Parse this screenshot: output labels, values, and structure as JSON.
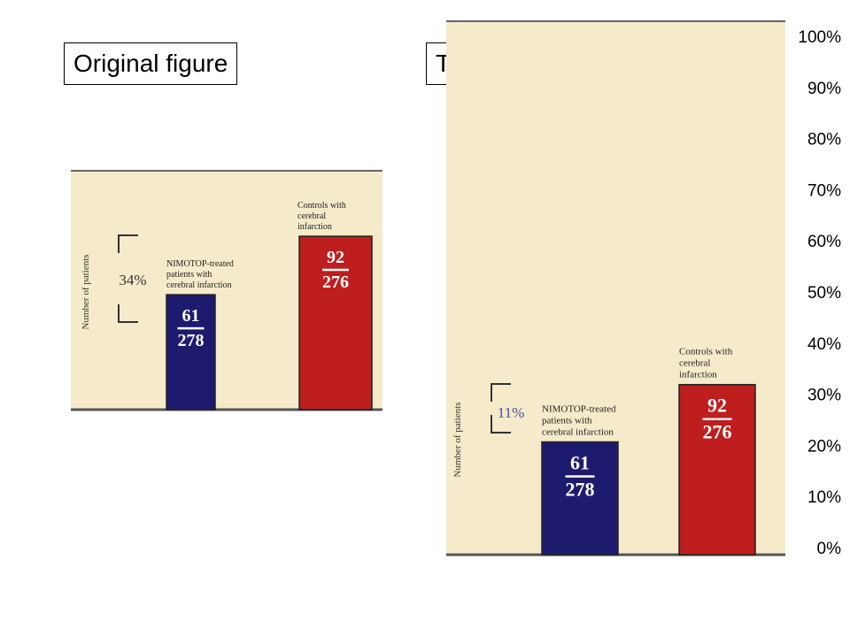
{
  "labels": {
    "original": "Original figure",
    "scaled": "To scale"
  },
  "colors": {
    "panel_bg": "#f5ebca",
    "bar_treated": "#1e1b6e",
    "bar_control": "#be1e1e",
    "axis": "#555555",
    "pct_text_original": "#333333",
    "pct_text_scaled": "#4a4ea0"
  },
  "chart_data": [
    {
      "panel": "original",
      "type": "bar",
      "ylabel": "Number of patients",
      "bracket_label": "34%",
      "categories": [
        "NIMOTOP-treated patients with cerebral infarction",
        "Controls with cerebral infarction"
      ],
      "category_lines": [
        [
          "NIMOTOP-treated",
          "patients with",
          "cerebral infarction"
        ],
        [
          "Controls with",
          "cerebral",
          "infarction"
        ]
      ],
      "values": [
        61,
        92
      ],
      "denominators": [
        278,
        276
      ]
    },
    {
      "panel": "to-scale",
      "type": "bar",
      "ylabel": "Number of patients",
      "bracket_label": "11%",
      "categories": [
        "NIMOTOP-treated patients with cerebral infarction",
        "Controls with cerebral infarction"
      ],
      "category_lines": [
        [
          "NIMOTOP-treated",
          "patients with",
          "cerebral infarction"
        ],
        [
          "Controls with",
          "cerebral",
          "infarction"
        ]
      ],
      "values": [
        61,
        92
      ],
      "denominators": [
        278,
        276
      ],
      "y_ticks": [
        "100%",
        "90%",
        "80%",
        "70%",
        "60%",
        "50%",
        "40%",
        "30%",
        "20%",
        "10%",
        "0%"
      ],
      "ylim": [
        0,
        100
      ]
    }
  ]
}
